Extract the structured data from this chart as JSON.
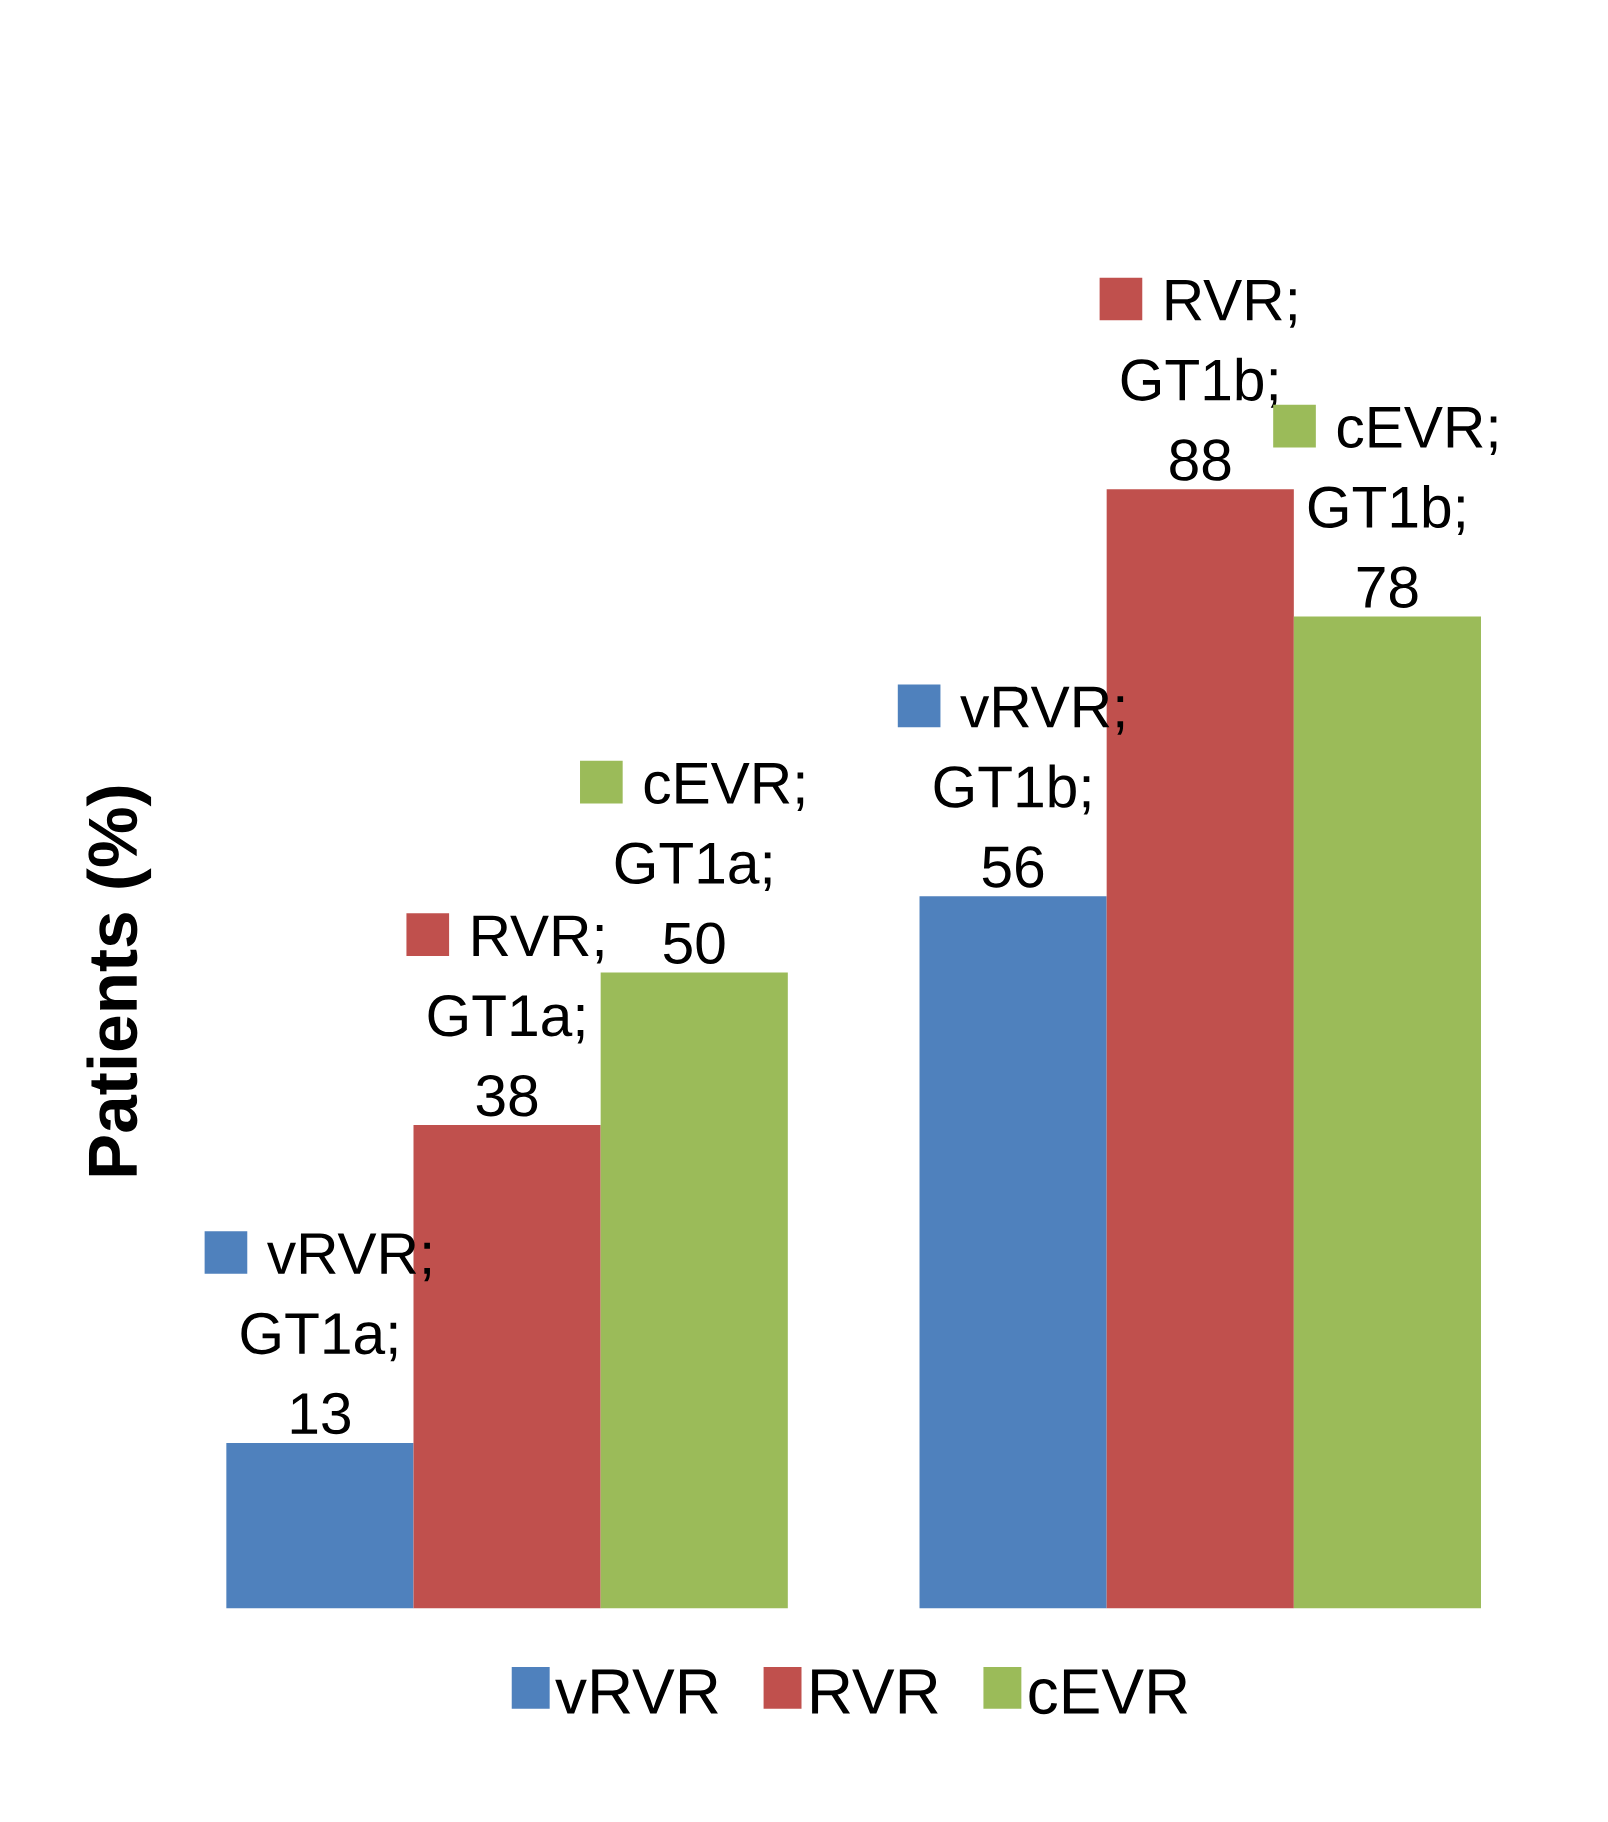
{
  "chart_data": {
    "type": "bar",
    "ylabel": "Patients (%)",
    "categories": [
      null,
      null
    ],
    "legend": "bottom",
    "series": [
      {
        "name": "vRVR",
        "color": "#4f81bd",
        "values": [
          13,
          56
        ],
        "value_labels": [
          "vRVR; GT1a; 13",
          "vRVR; GT1b; 56"
        ]
      },
      {
        "name": "RVR",
        "color": "#c0504d",
        "values": [
          38,
          88
        ],
        "value_labels": [
          "RVR; GT1a; 38",
          "RVR; GT1b; 88"
        ]
      },
      {
        "name": "cEVR",
        "color": "#9bbb59",
        "values": [
          50,
          78
        ],
        "value_labels": [
          "cEVR; GT1a; 50",
          "cEVR; GT1b; 78"
        ]
      }
    ]
  }
}
